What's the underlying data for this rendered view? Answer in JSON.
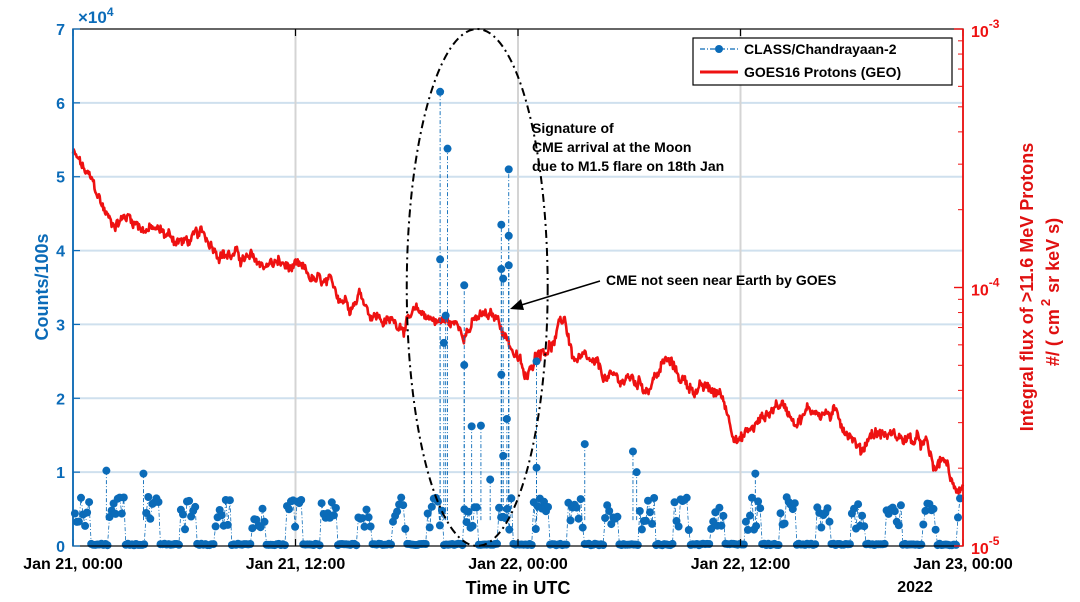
{
  "chart_data": {
    "type": "line",
    "x_unit": "hours since Jan 21, 00:00 UTC",
    "xlim": [
      0,
      48
    ],
    "x_ticks": [
      {
        "hours": 0,
        "label": "Jan 21, 00:00"
      },
      {
        "hours": 12,
        "label": "Jan 21, 12:00"
      },
      {
        "hours": 24,
        "label": "Jan 22, 00:00"
      },
      {
        "hours": 36,
        "label": "Jan 22, 12:00"
      },
      {
        "hours": 48,
        "label": "Jan 23, 00:00"
      }
    ],
    "xlabel": "Time in UTC",
    "x_year_label": "2022",
    "y_left": {
      "label": "Counts/100s",
      "multiplier": "×10",
      "multiplier_exp": "4",
      "lim": [
        0,
        7
      ],
      "ticks": [
        "0",
        "1",
        "2",
        "3",
        "4",
        "5",
        "6",
        "7"
      ]
    },
    "y_right": {
      "label_line1": "Integral flux of >11.6 MeV Protons",
      "label_line2": "#/ ( cm",
      "label_line2_exp": "2",
      "label_line2_end": "sr keV s)",
      "scale": "log",
      "lim": [
        1e-05,
        0.001
      ],
      "ticks": [
        {
          "value": 1e-05,
          "base": "10",
          "exp": "-5"
        },
        {
          "value": 0.0001,
          "base": "10",
          "exp": "-4"
        },
        {
          "value": 0.001,
          "base": "10",
          "exp": "-3"
        }
      ]
    },
    "legend": {
      "position": "top-right",
      "entries": [
        "CLASS/Chandrayaan-2",
        "GOES16 Protons (GEO)"
      ]
    },
    "series": [
      {
        "name": "CLASS/Chandrayaan-2",
        "axis": "left",
        "unit": "x10^4 counts/100s",
        "color": "#0b6bb8",
        "baseline_level": 0.35,
        "spikes": [
          {
            "x": 1.8,
            "y": 1.02
          },
          {
            "x": 3.8,
            "y": 0.98
          },
          {
            "x": 19.8,
            "y": 6.15
          },
          {
            "x": 19.8,
            "y": 3.88
          },
          {
            "x": 20.0,
            "y": 2.75
          },
          {
            "x": 20.1,
            "y": 3.12
          },
          {
            "x": 20.2,
            "y": 5.38
          },
          {
            "x": 21.1,
            "y": 3.53
          },
          {
            "x": 21.1,
            "y": 2.45
          },
          {
            "x": 21.5,
            "y": 1.62
          },
          {
            "x": 22.0,
            "y": 1.63
          },
          {
            "x": 22.5,
            "y": 0.9
          },
          {
            "x": 23.1,
            "y": 4.35
          },
          {
            "x": 23.1,
            "y": 3.75
          },
          {
            "x": 23.2,
            "y": 3.62
          },
          {
            "x": 23.1,
            "y": 2.32
          },
          {
            "x": 23.2,
            "y": 1.22
          },
          {
            "x": 23.5,
            "y": 5.1
          },
          {
            "x": 23.5,
            "y": 4.2
          },
          {
            "x": 23.5,
            "y": 3.8
          },
          {
            "x": 23.4,
            "y": 1.72
          },
          {
            "x": 25.0,
            "y": 2.5
          },
          {
            "x": 25.0,
            "y": 1.06
          },
          {
            "x": 27.6,
            "y": 1.38
          },
          {
            "x": 30.2,
            "y": 1.28
          },
          {
            "x": 30.4,
            "y": 1.0
          },
          {
            "x": 36.8,
            "y": 0.98
          }
        ]
      },
      {
        "name": "GOES16 Protons (GEO)",
        "axis": "right",
        "unit": "#/(cm2 sr keV s)",
        "color": "#ee1111",
        "trend": [
          {
            "x": 0.0,
            "y": 0.00033
          },
          {
            "x": 1.0,
            "y": 0.00025
          },
          {
            "x": 2.0,
            "y": 0.00018
          },
          {
            "x": 3.0,
            "y": 0.00019
          },
          {
            "x": 4.0,
            "y": 0.00017
          },
          {
            "x": 5.0,
            "y": 0.00016
          },
          {
            "x": 6.0,
            "y": 0.00015
          },
          {
            "x": 7.0,
            "y": 0.000155
          },
          {
            "x": 8.0,
            "y": 0.000142
          },
          {
            "x": 9.0,
            "y": 0.00013
          },
          {
            "x": 10.0,
            "y": 0.000122
          },
          {
            "x": 11.0,
            "y": 0.000124
          },
          {
            "x": 12.0,
            "y": 0.000115
          },
          {
            "x": 13.0,
            "y": 0.000105
          },
          {
            "x": 14.0,
            "y": 9.5e-05
          },
          {
            "x": 15.0,
            "y": 9e-05
          },
          {
            "x": 15.5,
            "y": 9.8e-05
          },
          {
            "x": 16.0,
            "y": 8.3e-05
          },
          {
            "x": 17.0,
            "y": 7.3e-05
          },
          {
            "x": 18.0,
            "y": 7.5e-05
          },
          {
            "x": 19.0,
            "y": 7.8e-05
          },
          {
            "x": 20.0,
            "y": 7.4e-05
          },
          {
            "x": 21.0,
            "y": 7e-05
          },
          {
            "x": 22.0,
            "y": 7.6e-05
          },
          {
            "x": 23.0,
            "y": 7.4e-05
          },
          {
            "x": 24.0,
            "y": 5.3e-05
          },
          {
            "x": 24.5,
            "y": 4.2e-05
          },
          {
            "x": 25.0,
            "y": 5.8e-05
          },
          {
            "x": 26.0,
            "y": 6.3e-05
          },
          {
            "x": 26.5,
            "y": 7.6e-05
          },
          {
            "x": 27.0,
            "y": 5.3e-05
          },
          {
            "x": 28.0,
            "y": 4.8e-05
          },
          {
            "x": 29.0,
            "y": 4.3e-05
          },
          {
            "x": 30.0,
            "y": 4.4e-05
          },
          {
            "x": 31.0,
            "y": 4.2e-05
          },
          {
            "x": 32.0,
            "y": 5.2e-05
          },
          {
            "x": 33.0,
            "y": 4.3e-05
          },
          {
            "x": 34.0,
            "y": 4e-05
          },
          {
            "x": 35.0,
            "y": 3.8e-05
          },
          {
            "x": 35.5,
            "y": 3e-05
          },
          {
            "x": 36.0,
            "y": 2.6e-05
          },
          {
            "x": 37.0,
            "y": 3e-05
          },
          {
            "x": 38.0,
            "y": 3.6e-05
          },
          {
            "x": 39.0,
            "y": 3.2e-05
          },
          {
            "x": 40.0,
            "y": 3.4e-05
          },
          {
            "x": 41.0,
            "y": 3.2e-05
          },
          {
            "x": 42.0,
            "y": 2.8e-05
          },
          {
            "x": 42.5,
            "y": 2.3e-05
          },
          {
            "x": 43.0,
            "y": 2.8e-05
          },
          {
            "x": 44.0,
            "y": 2.7e-05
          },
          {
            "x": 45.0,
            "y": 2.6e-05
          },
          {
            "x": 46.0,
            "y": 2.4e-05
          },
          {
            "x": 46.5,
            "y": 1.9e-05
          },
          {
            "x": 47.0,
            "y": 2.2e-05
          },
          {
            "x": 47.5,
            "y": 1.6e-05
          },
          {
            "x": 48.0,
            "y": 1.8e-05
          }
        ]
      }
    ],
    "annotations": [
      {
        "id": "cme-signature",
        "lines": [
          "Signature of",
          "CME arrival at the Moon",
          "due to M1.5 flare on 18th Jan"
        ]
      },
      {
        "id": "cme-not-seen",
        "lines": [
          "CME not seen near Earth by GOES"
        ]
      }
    ],
    "highlight_ellipse": {
      "x_center": 21.8,
      "y_center": 3.5,
      "x_halfwidth": 3.8,
      "y_halfwidth": 3.5
    }
  }
}
